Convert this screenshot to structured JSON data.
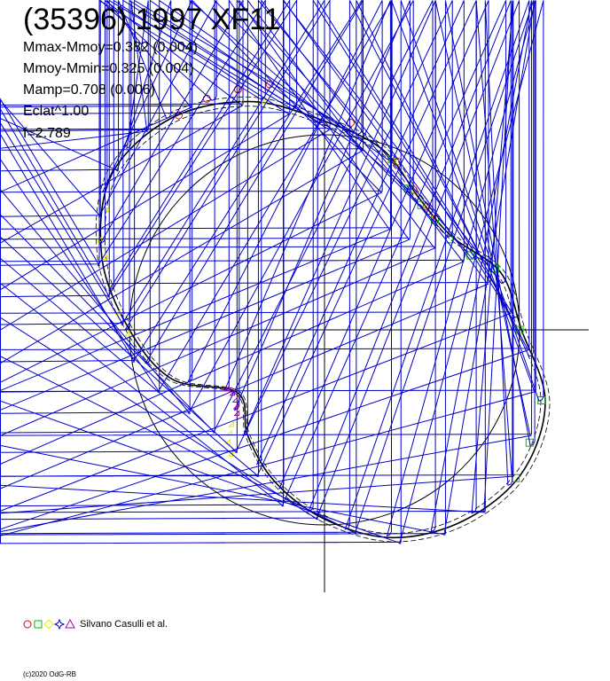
{
  "title": "(35396) 1997 XF11",
  "stats": [
    "Mmax-Mmoy=0.382 (0.004)",
    "Mmoy-Mmin=0.325 (0.004)",
    "Mamp=0.708 (0.006)",
    "Eclat^1.00",
    "f=2.789"
  ],
  "legend": {
    "label": "Silvano Casulli et al.",
    "markers": [
      {
        "shape": "circle",
        "color": "#dd0000"
      },
      {
        "shape": "square",
        "color": "#00bb00"
      },
      {
        "shape": "diamond",
        "color": "#e8e800"
      },
      {
        "shape": "star",
        "color": "#0000cc"
      },
      {
        "shape": "triangle",
        "color": "#aa00aa"
      }
    ]
  },
  "copyright": "(c)2020 OdG-RB",
  "chart_data": {
    "type": "scatter",
    "coordinate_system": "polar",
    "description_of_axes": "angle = rotational phase (0..1 clockwise from top), radius = relative brightness",
    "reference_circle_radius": 1.0,
    "curve": {
      "name": "fit",
      "phase": [
        0.0,
        0.05,
        0.1,
        0.15,
        0.2,
        0.25,
        0.3,
        0.35,
        0.4,
        0.45,
        0.5,
        0.55,
        0.6,
        0.65,
        0.7,
        0.75,
        0.8,
        0.85,
        0.9,
        0.95
      ],
      "radius": [
        1.07,
        0.97,
        0.83,
        0.81,
        0.95,
        1.01,
        1.19,
        1.25,
        1.21,
        1.12,
        0.97,
        0.82,
        0.67,
        0.55,
        0.82,
        1.0,
        1.2,
        1.35,
        1.34,
        1.23
      ]
    },
    "series": [
      {
        "marker": "circle",
        "color": "#dd0000",
        "points": [
          [
            0.905,
            1.33
          ],
          [
            0.925,
            1.33
          ],
          [
            0.945,
            1.31
          ],
          [
            0.965,
            1.29
          ],
          [
            0.02,
            1.07
          ],
          [
            0.065,
            0.94
          ],
          [
            0.09,
            0.85
          ],
          [
            0.11,
            0.82
          ],
          [
            0.125,
            0.81
          ]
        ]
      },
      {
        "marker": "square",
        "color": "#00bb00",
        "points": [
          [
            0.06,
            0.94
          ],
          [
            0.085,
            0.84
          ],
          [
            0.105,
            0.81
          ],
          [
            0.125,
            0.8
          ],
          [
            0.15,
            0.79
          ],
          [
            0.175,
            0.84
          ],
          [
            0.195,
            0.93
          ],
          [
            0.25,
            1.0
          ],
          [
            0.3,
            1.17
          ],
          [
            0.33,
            1.2
          ],
          [
            0.355,
            1.24
          ]
        ]
      },
      {
        "marker": "diamond",
        "color": "#e8e800",
        "points": [
          [
            0.745,
            1.0
          ],
          [
            0.762,
            1.05
          ],
          [
            0.782,
            1.1
          ],
          [
            0.8,
            1.17
          ],
          [
            0.81,
            1.23
          ],
          [
            0.83,
            1.26
          ],
          [
            0.62,
            0.68
          ],
          [
            0.615,
            0.72
          ],
          [
            0.61,
            0.76
          ],
          [
            0.6,
            0.8
          ],
          [
            0.96,
            1.2
          ],
          [
            0.945,
            1.23
          ]
        ]
      },
      {
        "marker": "star",
        "color": "#0000cc",
        "points": [
          [
            0.0,
            1.06
          ],
          [
            0.03,
            1.02
          ],
          [
            0.06,
            0.94
          ],
          [
            0.09,
            0.85
          ],
          [
            0.12,
            0.81
          ],
          [
            0.15,
            0.81
          ],
          [
            0.18,
            0.86
          ],
          [
            0.21,
            0.96
          ],
          [
            0.24,
            1.0
          ],
          [
            0.27,
            1.08
          ],
          [
            0.3,
            1.18
          ],
          [
            0.33,
            1.23
          ],
          [
            0.36,
            1.25
          ],
          [
            0.39,
            1.22
          ],
          [
            0.42,
            1.18
          ],
          [
            0.45,
            1.11
          ],
          [
            0.48,
            1.03
          ],
          [
            0.51,
            0.93
          ],
          [
            0.54,
            0.84
          ],
          [
            0.57,
            0.76
          ],
          [
            0.6,
            0.67
          ],
          [
            0.63,
            0.6
          ],
          [
            0.66,
            0.58
          ],
          [
            0.69,
            0.73
          ],
          [
            0.72,
            0.91
          ],
          [
            0.75,
            1.0
          ],
          [
            0.78,
            1.1
          ],
          [
            0.81,
            1.21
          ],
          [
            0.84,
            1.32
          ],
          [
            0.87,
            1.36
          ],
          [
            0.9,
            1.34
          ],
          [
            0.93,
            1.3
          ],
          [
            0.96,
            1.22
          ],
          [
            0.98,
            1.14
          ]
        ]
      },
      {
        "marker": "triangle",
        "color": "#aa00aa",
        "points": [
          [
            0.625,
            0.62
          ],
          [
            0.632,
            0.6
          ],
          [
            0.64,
            0.58
          ],
          [
            0.65,
            0.57
          ],
          [
            0.66,
            0.58
          ]
        ]
      }
    ]
  }
}
